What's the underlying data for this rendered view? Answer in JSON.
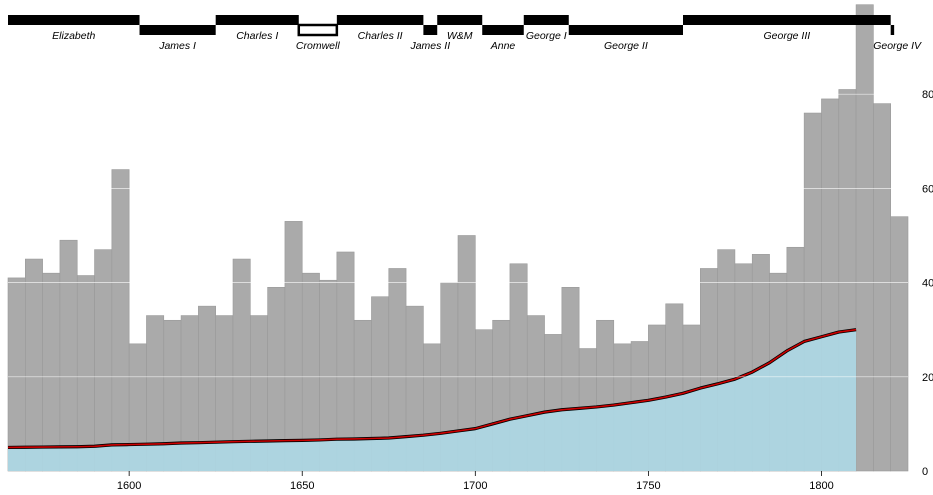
{
  "chart_data": {
    "type": "bar",
    "bar_color": "#aaaaaa",
    "bar_edge_color": "#999999",
    "area_color": "#add8e6",
    "line_color": "#cc0000",
    "line_shadow_color": "#000000",
    "grid_color": "#ffffff",
    "xlim": [
      1565,
      1825
    ],
    "ylim": [
      0,
      100
    ],
    "x_ticks": [
      1600,
      1650,
      1700,
      1750,
      1800
    ],
    "y_ticks": [
      0,
      20,
      40,
      60,
      80
    ],
    "bar_width": 5,
    "bars": {
      "x": [
        1565,
        1570,
        1575,
        1580,
        1585,
        1590,
        1595,
        1600,
        1605,
        1610,
        1615,
        1620,
        1625,
        1630,
        1635,
        1640,
        1645,
        1650,
        1655,
        1660,
        1665,
        1670,
        1675,
        1680,
        1685,
        1690,
        1695,
        1700,
        1705,
        1710,
        1715,
        1720,
        1725,
        1730,
        1735,
        1740,
        1745,
        1750,
        1755,
        1760,
        1765,
        1770,
        1775,
        1780,
        1785,
        1790,
        1795,
        1800,
        1805,
        1810,
        1815,
        1820
      ],
      "values": [
        41,
        45,
        42,
        49,
        41.5,
        47,
        64,
        27,
        33,
        32,
        33,
        35,
        33,
        45,
        33,
        39,
        53,
        42,
        40.5,
        46.5,
        32,
        37,
        43,
        35,
        27,
        40,
        50,
        30,
        32,
        44,
        33,
        29,
        39,
        26,
        32,
        27,
        27.5,
        31,
        35.5,
        31,
        43,
        47,
        44,
        46,
        42,
        47.5,
        76,
        79,
        81,
        99,
        78,
        54
      ]
    },
    "wages": {
      "x": [
        1565,
        1570,
        1575,
        1580,
        1585,
        1590,
        1595,
        1600,
        1605,
        1610,
        1615,
        1620,
        1625,
        1630,
        1635,
        1640,
        1645,
        1650,
        1655,
        1660,
        1665,
        1670,
        1675,
        1680,
        1685,
        1690,
        1695,
        1700,
        1705,
        1710,
        1715,
        1720,
        1725,
        1730,
        1735,
        1740,
        1745,
        1750,
        1755,
        1760,
        1765,
        1770,
        1775,
        1780,
        1785,
        1790,
        1795,
        1800,
        1805,
        1810
      ],
      "values": [
        5,
        5.05,
        5.08,
        5.12,
        5.15,
        5.25,
        5.54,
        5.61,
        5.69,
        5.78,
        5.94,
        6.01,
        6.12,
        6.22,
        6.3,
        6.37,
        6.45,
        6.5,
        6.6,
        6.75,
        6.8,
        6.9,
        7.0,
        7.3,
        7.6,
        8.0,
        8.5,
        9.0,
        10.0,
        11.0,
        11.75,
        12.5,
        13.0,
        13.3,
        13.6,
        14.0,
        14.5,
        15.0,
        15.7,
        16.5,
        17.6,
        18.5,
        19.5,
        21.0,
        23.0,
        25.5,
        27.5,
        28.5,
        29.5,
        30.0
      ]
    },
    "reigns": [
      {
        "name": "Elizabeth",
        "start": 1565,
        "end": 1603,
        "commonwealth": false
      },
      {
        "name": "James I",
        "start": 1603,
        "end": 1625,
        "commonwealth": false
      },
      {
        "name": "Charles I",
        "start": 1625,
        "end": 1649,
        "commonwealth": false
      },
      {
        "name": "Cromwell",
        "start": 1649,
        "end": 1660,
        "commonwealth": true
      },
      {
        "name": "Charles II",
        "start": 1660,
        "end": 1685,
        "commonwealth": false
      },
      {
        "name": "James II",
        "start": 1685,
        "end": 1689,
        "commonwealth": false
      },
      {
        "name": "W&M",
        "start": 1689,
        "end": 1702,
        "commonwealth": false
      },
      {
        "name": "Anne",
        "start": 1702,
        "end": 1714,
        "commonwealth": false
      },
      {
        "name": "George I",
        "start": 1714,
        "end": 1727,
        "commonwealth": false
      },
      {
        "name": "George II",
        "start": 1727,
        "end": 1760,
        "commonwealth": false
      },
      {
        "name": "George III",
        "start": 1760,
        "end": 1820,
        "commonwealth": false
      },
      {
        "name": "George IV",
        "start": 1820,
        "end": 1821,
        "commonwealth": false
      }
    ],
    "grid": true,
    "y_axis_side": "right"
  }
}
